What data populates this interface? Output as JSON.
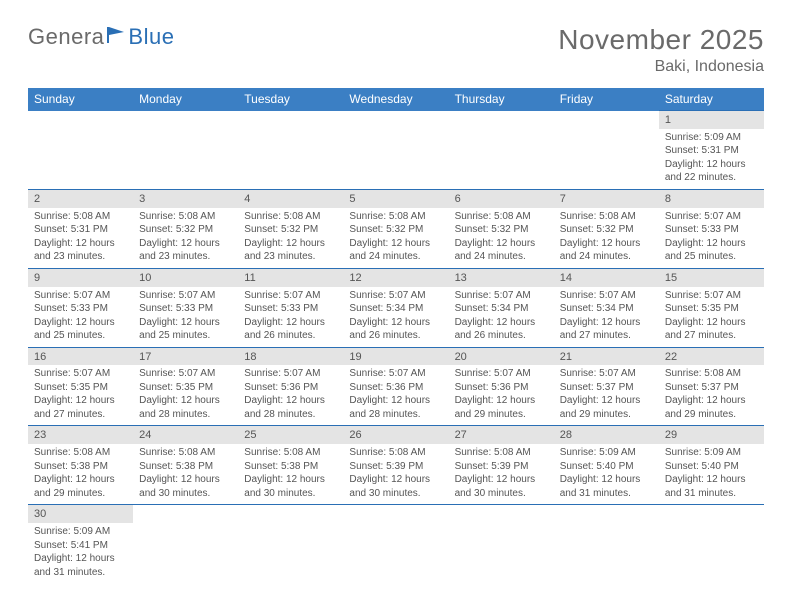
{
  "brand": {
    "part1": "Genera",
    "part2": "Blue"
  },
  "title": "November 2025",
  "location": "Baki, Indonesia",
  "colors": {
    "header_bg": "#3b7fc4",
    "accent": "#2a6fb5",
    "daynum_bg": "#e4e4e4",
    "text": "#555555"
  },
  "day_headers": [
    "Sunday",
    "Monday",
    "Tuesday",
    "Wednesday",
    "Thursday",
    "Friday",
    "Saturday"
  ],
  "weeks": [
    [
      null,
      null,
      null,
      null,
      null,
      null,
      {
        "n": "1",
        "sr": "Sunrise: 5:09 AM",
        "ss": "Sunset: 5:31 PM",
        "d1": "Daylight: 12 hours",
        "d2": "and 22 minutes."
      }
    ],
    [
      {
        "n": "2",
        "sr": "Sunrise: 5:08 AM",
        "ss": "Sunset: 5:31 PM",
        "d1": "Daylight: 12 hours",
        "d2": "and 23 minutes."
      },
      {
        "n": "3",
        "sr": "Sunrise: 5:08 AM",
        "ss": "Sunset: 5:32 PM",
        "d1": "Daylight: 12 hours",
        "d2": "and 23 minutes."
      },
      {
        "n": "4",
        "sr": "Sunrise: 5:08 AM",
        "ss": "Sunset: 5:32 PM",
        "d1": "Daylight: 12 hours",
        "d2": "and 23 minutes."
      },
      {
        "n": "5",
        "sr": "Sunrise: 5:08 AM",
        "ss": "Sunset: 5:32 PM",
        "d1": "Daylight: 12 hours",
        "d2": "and 24 minutes."
      },
      {
        "n": "6",
        "sr": "Sunrise: 5:08 AM",
        "ss": "Sunset: 5:32 PM",
        "d1": "Daylight: 12 hours",
        "d2": "and 24 minutes."
      },
      {
        "n": "7",
        "sr": "Sunrise: 5:08 AM",
        "ss": "Sunset: 5:32 PM",
        "d1": "Daylight: 12 hours",
        "d2": "and 24 minutes."
      },
      {
        "n": "8",
        "sr": "Sunrise: 5:07 AM",
        "ss": "Sunset: 5:33 PM",
        "d1": "Daylight: 12 hours",
        "d2": "and 25 minutes."
      }
    ],
    [
      {
        "n": "9",
        "sr": "Sunrise: 5:07 AM",
        "ss": "Sunset: 5:33 PM",
        "d1": "Daylight: 12 hours",
        "d2": "and 25 minutes."
      },
      {
        "n": "10",
        "sr": "Sunrise: 5:07 AM",
        "ss": "Sunset: 5:33 PM",
        "d1": "Daylight: 12 hours",
        "d2": "and 25 minutes."
      },
      {
        "n": "11",
        "sr": "Sunrise: 5:07 AM",
        "ss": "Sunset: 5:33 PM",
        "d1": "Daylight: 12 hours",
        "d2": "and 26 minutes."
      },
      {
        "n": "12",
        "sr": "Sunrise: 5:07 AM",
        "ss": "Sunset: 5:34 PM",
        "d1": "Daylight: 12 hours",
        "d2": "and 26 minutes."
      },
      {
        "n": "13",
        "sr": "Sunrise: 5:07 AM",
        "ss": "Sunset: 5:34 PM",
        "d1": "Daylight: 12 hours",
        "d2": "and 26 minutes."
      },
      {
        "n": "14",
        "sr": "Sunrise: 5:07 AM",
        "ss": "Sunset: 5:34 PM",
        "d1": "Daylight: 12 hours",
        "d2": "and 27 minutes."
      },
      {
        "n": "15",
        "sr": "Sunrise: 5:07 AM",
        "ss": "Sunset: 5:35 PM",
        "d1": "Daylight: 12 hours",
        "d2": "and 27 minutes."
      }
    ],
    [
      {
        "n": "16",
        "sr": "Sunrise: 5:07 AM",
        "ss": "Sunset: 5:35 PM",
        "d1": "Daylight: 12 hours",
        "d2": "and 27 minutes."
      },
      {
        "n": "17",
        "sr": "Sunrise: 5:07 AM",
        "ss": "Sunset: 5:35 PM",
        "d1": "Daylight: 12 hours",
        "d2": "and 28 minutes."
      },
      {
        "n": "18",
        "sr": "Sunrise: 5:07 AM",
        "ss": "Sunset: 5:36 PM",
        "d1": "Daylight: 12 hours",
        "d2": "and 28 minutes."
      },
      {
        "n": "19",
        "sr": "Sunrise: 5:07 AM",
        "ss": "Sunset: 5:36 PM",
        "d1": "Daylight: 12 hours",
        "d2": "and 28 minutes."
      },
      {
        "n": "20",
        "sr": "Sunrise: 5:07 AM",
        "ss": "Sunset: 5:36 PM",
        "d1": "Daylight: 12 hours",
        "d2": "and 29 minutes."
      },
      {
        "n": "21",
        "sr": "Sunrise: 5:07 AM",
        "ss": "Sunset: 5:37 PM",
        "d1": "Daylight: 12 hours",
        "d2": "and 29 minutes."
      },
      {
        "n": "22",
        "sr": "Sunrise: 5:08 AM",
        "ss": "Sunset: 5:37 PM",
        "d1": "Daylight: 12 hours",
        "d2": "and 29 minutes."
      }
    ],
    [
      {
        "n": "23",
        "sr": "Sunrise: 5:08 AM",
        "ss": "Sunset: 5:38 PM",
        "d1": "Daylight: 12 hours",
        "d2": "and 29 minutes."
      },
      {
        "n": "24",
        "sr": "Sunrise: 5:08 AM",
        "ss": "Sunset: 5:38 PM",
        "d1": "Daylight: 12 hours",
        "d2": "and 30 minutes."
      },
      {
        "n": "25",
        "sr": "Sunrise: 5:08 AM",
        "ss": "Sunset: 5:38 PM",
        "d1": "Daylight: 12 hours",
        "d2": "and 30 minutes."
      },
      {
        "n": "26",
        "sr": "Sunrise: 5:08 AM",
        "ss": "Sunset: 5:39 PM",
        "d1": "Daylight: 12 hours",
        "d2": "and 30 minutes."
      },
      {
        "n": "27",
        "sr": "Sunrise: 5:08 AM",
        "ss": "Sunset: 5:39 PM",
        "d1": "Daylight: 12 hours",
        "d2": "and 30 minutes."
      },
      {
        "n": "28",
        "sr": "Sunrise: 5:09 AM",
        "ss": "Sunset: 5:40 PM",
        "d1": "Daylight: 12 hours",
        "d2": "and 31 minutes."
      },
      {
        "n": "29",
        "sr": "Sunrise: 5:09 AM",
        "ss": "Sunset: 5:40 PM",
        "d1": "Daylight: 12 hours",
        "d2": "and 31 minutes."
      }
    ],
    [
      {
        "n": "30",
        "sr": "Sunrise: 5:09 AM",
        "ss": "Sunset: 5:41 PM",
        "d1": "Daylight: 12 hours",
        "d2": "and 31 minutes."
      },
      null,
      null,
      null,
      null,
      null,
      null
    ]
  ]
}
